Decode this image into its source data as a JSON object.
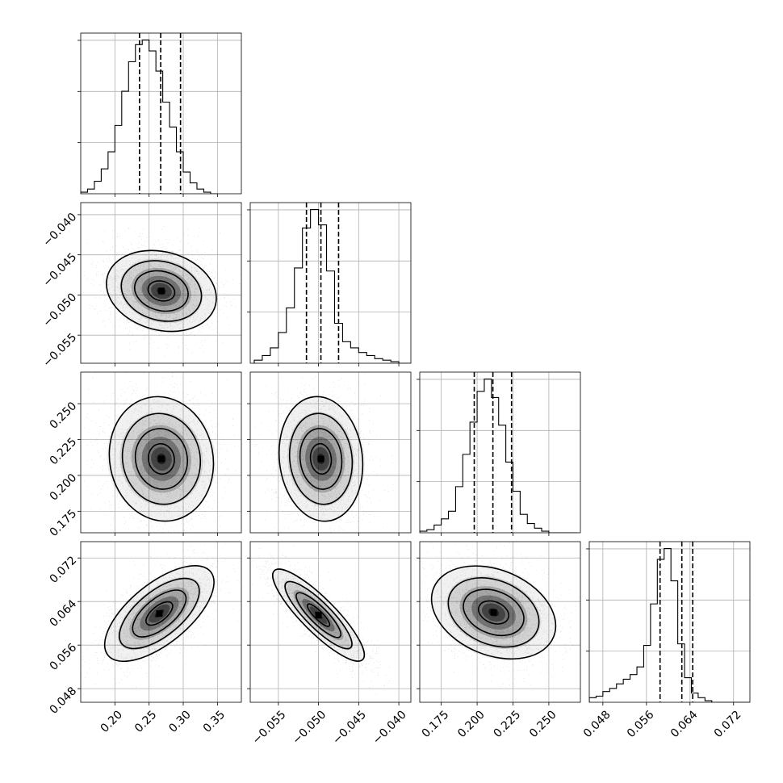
{
  "chart_data": {
    "type": "corner",
    "title": "",
    "parameters": [
      {
        "index": 0,
        "range": [
          0.15,
          0.385
        ],
        "ticks": [
          0.2,
          0.25,
          0.3,
          0.35
        ],
        "tick_labels": [
          "0.20",
          "0.25",
          "0.30",
          "0.35"
        ],
        "quantiles": [
          0.236,
          0.267,
          0.296
        ],
        "hist_bins_start": 0.15,
        "hist_bins_step": 0.01,
        "hist_counts": [
          1,
          3,
          8,
          16,
          27,
          44,
          66,
          85,
          96,
          99,
          92,
          79,
          59,
          43,
          27,
          14,
          7,
          3,
          1,
          0
        ]
      },
      {
        "index": 1,
        "range": [
          -0.0585,
          -0.0385
        ],
        "ticks": [
          -0.055,
          -0.05,
          -0.045,
          -0.04
        ],
        "tick_labels": [
          "−0.055",
          "−0.050",
          "−0.045",
          "−0.040"
        ],
        "quantiles": [
          -0.0515,
          -0.0497,
          -0.0475
        ],
        "hist_bins_start": -0.058,
        "hist_bins_step": 0.001,
        "hist_counts": [
          2,
          5,
          10,
          20,
          36,
          62,
          88,
          100,
          90,
          60,
          26,
          14,
          10,
          7,
          5,
          3,
          2,
          1,
          0,
          0
        ]
      },
      {
        "index": 2,
        "range": [
          0.16,
          0.272
        ],
        "ticks": [
          0.175,
          0.2,
          0.225,
          0.25
        ],
        "tick_labels": [
          "0.175",
          "0.200",
          "0.225",
          "0.250"
        ],
        "quantiles": [
          0.198,
          0.211,
          0.224
        ],
        "hist_bins_start": 0.16,
        "hist_bins_step": 0.005,
        "hist_counts": [
          1,
          2,
          5,
          9,
          14,
          30,
          51,
          72,
          92,
          100,
          88,
          70,
          46,
          27,
          12,
          6,
          3,
          1,
          0,
          0,
          0,
          0
        ]
      },
      {
        "index": 3,
        "range": [
          0.0455,
          0.075
        ],
        "ticks": [
          0.048,
          0.056,
          0.064,
          0.072
        ],
        "tick_labels": [
          "0.048",
          "0.056",
          "0.064",
          "0.072"
        ],
        "quantiles": [
          0.0585,
          0.0625,
          0.0645
        ],
        "hist_bins_start": 0.0455,
        "hist_bins_step": 0.00125,
        "hist_counts": [
          3,
          4,
          7,
          9,
          12,
          15,
          18,
          23,
          37,
          64,
          93,
          100,
          79,
          38,
          16,
          6,
          3,
          1,
          0,
          0,
          0,
          0,
          0,
          0
        ]
      }
    ],
    "pairs": [
      {
        "x": 0,
        "y": 1,
        "mean": [
          0.268,
          -0.0495
        ],
        "sigma": [
          0.038,
          0.0025
        ],
        "corr": -0.15
      },
      {
        "x": 0,
        "y": 2,
        "mean": [
          0.268,
          0.2115
        ],
        "sigma": [
          0.038,
          0.0205
        ],
        "corr": -0.05
      },
      {
        "x": 1,
        "y": 2,
        "mean": [
          -0.0497,
          0.2115
        ],
        "sigma": [
          0.0026,
          0.0205
        ],
        "corr": -0.08
      },
      {
        "x": 0,
        "y": 3,
        "mean": [
          0.265,
          0.0618
        ],
        "sigma": [
          0.038,
          0.0042
        ],
        "corr": 0.62
      },
      {
        "x": 1,
        "y": 3,
        "mean": [
          -0.05,
          0.0615
        ],
        "sigma": [
          0.0027,
          0.004
        ],
        "corr": -0.85
      },
      {
        "x": 2,
        "y": 3,
        "mean": [
          0.2115,
          0.062
        ],
        "sigma": [
          0.0205,
          0.0042
        ],
        "corr": -0.25
      }
    ],
    "contour_levels_sigma": [
      0.5,
      1.0,
      1.5,
      2.0
    ],
    "grid": true
  }
}
